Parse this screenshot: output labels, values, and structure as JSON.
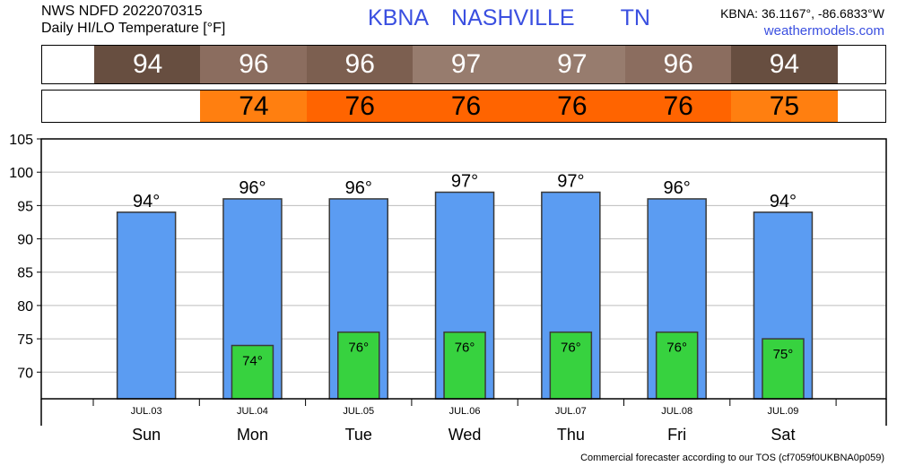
{
  "header": {
    "line1": "NWS NDFD 2022070315",
    "line2": "Daily HI/LO Temperature [°F]",
    "station": "KBNA",
    "city": "NASHVILLE",
    "state": "TN",
    "coords": "KBNA: 36.1167°, -86.6833°W",
    "site": "weathermodels.com"
  },
  "colors": {
    "high_bar": "#5b9cf2",
    "low_bar": "#37d23f",
    "high_strip": [
      "#674e40",
      "#8b6d5f",
      "#7c5f50",
      "#977c6e",
      "#977c6e",
      "#8b6d5f",
      "#674e40"
    ],
    "low_strip": [
      "#ff7f10",
      "#ff6400",
      "#ff6400",
      "#ff6400",
      "#ff6400",
      "#ff7f10"
    ]
  },
  "chart_data": {
    "type": "bar",
    "categories": [
      "JUL.03",
      "JUL.04",
      "JUL.05",
      "JUL.06",
      "JUL.07",
      "JUL.08",
      "JUL.09"
    ],
    "days": [
      "Sun",
      "Mon",
      "Tue",
      "Wed",
      "Thu",
      "Fri",
      "Sat"
    ],
    "series": [
      {
        "values": [
          94,
          96,
          96,
          97,
          97,
          96,
          94
        ],
        "labels": [
          "94°",
          "96°",
          "96°",
          "97°",
          "97°",
          "96°",
          "94°"
        ]
      },
      {
        "values": [
          null,
          74,
          76,
          76,
          76,
          76,
          75
        ],
        "labels": [
          "",
          "74°",
          "76°",
          "76°",
          "76°",
          "76°",
          "75°"
        ]
      }
    ],
    "high_strip_values": [
      "94",
      "96",
      "96",
      "97",
      "97",
      "96",
      "94"
    ],
    "low_strip_values": [
      "74",
      "76",
      "76",
      "76",
      "76",
      "75"
    ],
    "ylim": [
      66,
      105
    ],
    "yticks": [
      70,
      75,
      80,
      85,
      90,
      95,
      100,
      105
    ],
    "grid": true
  },
  "footer": "Commercial forecaster according to our TOS (cf7059f0UKBNA0p059)"
}
